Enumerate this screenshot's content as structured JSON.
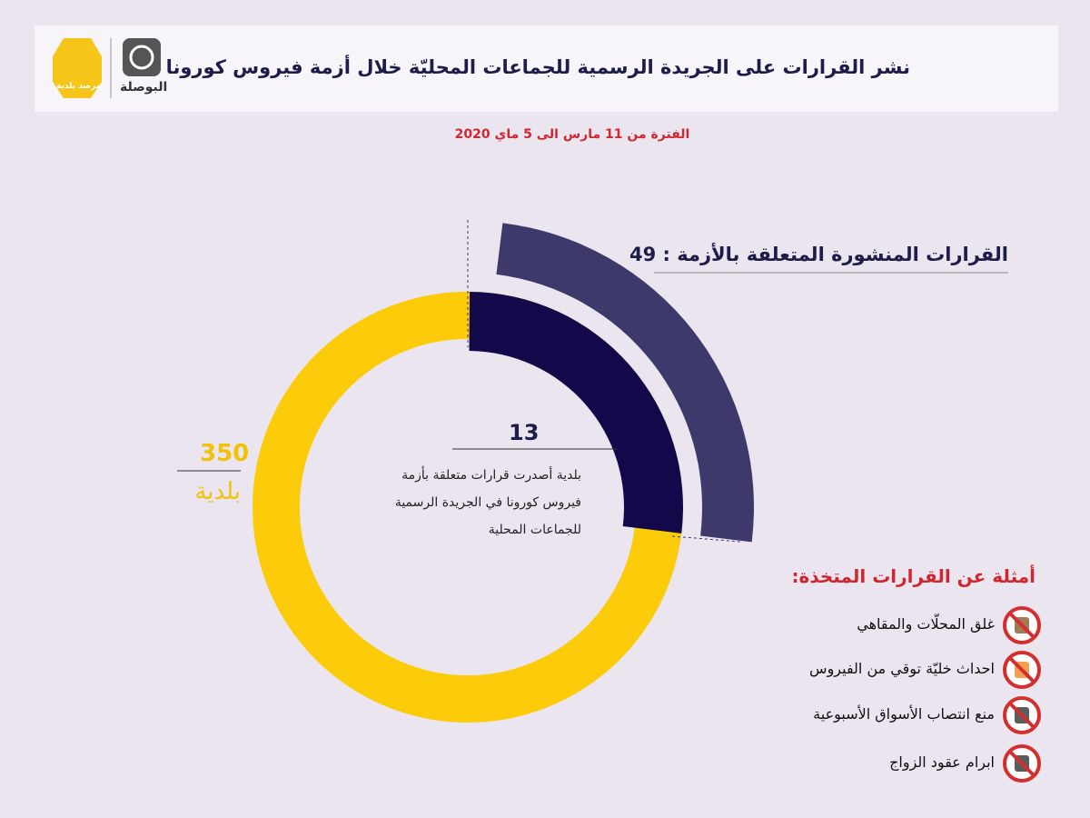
{
  "header": {
    "title": "نشر القرارات على الجريدة الرسمية للجماعات المحليّة خلال أزمة فيروس كورونا",
    "logo": "البوصلة",
    "logo2": "مرصد بلدية"
  },
  "subtitle": "الفترة من 11 مارس الى 5 ماي 2020",
  "published": {
    "label": "القرارات المنشورة المتعلقة بالأزمة :",
    "value": "49"
  },
  "municipalities": {
    "value": "13",
    "lines": [
      "بلدية أصدرت قرارات متعلقة بأزمة",
      "فيروس كورونا في الجريدة الرسمية",
      "للجماعات المحلية"
    ]
  },
  "total": {
    "value": "350",
    "label": "بلدية"
  },
  "examples": {
    "title": "أمثلة عن القرارات المتخذة:",
    "items": [
      "غلق المحلّات والمقاهي",
      "احداث خليّة توقي من الفيروس",
      "منع انتصاب الأسواق الأسبوعية",
      "ابرام عقود الزواج"
    ]
  }
}
